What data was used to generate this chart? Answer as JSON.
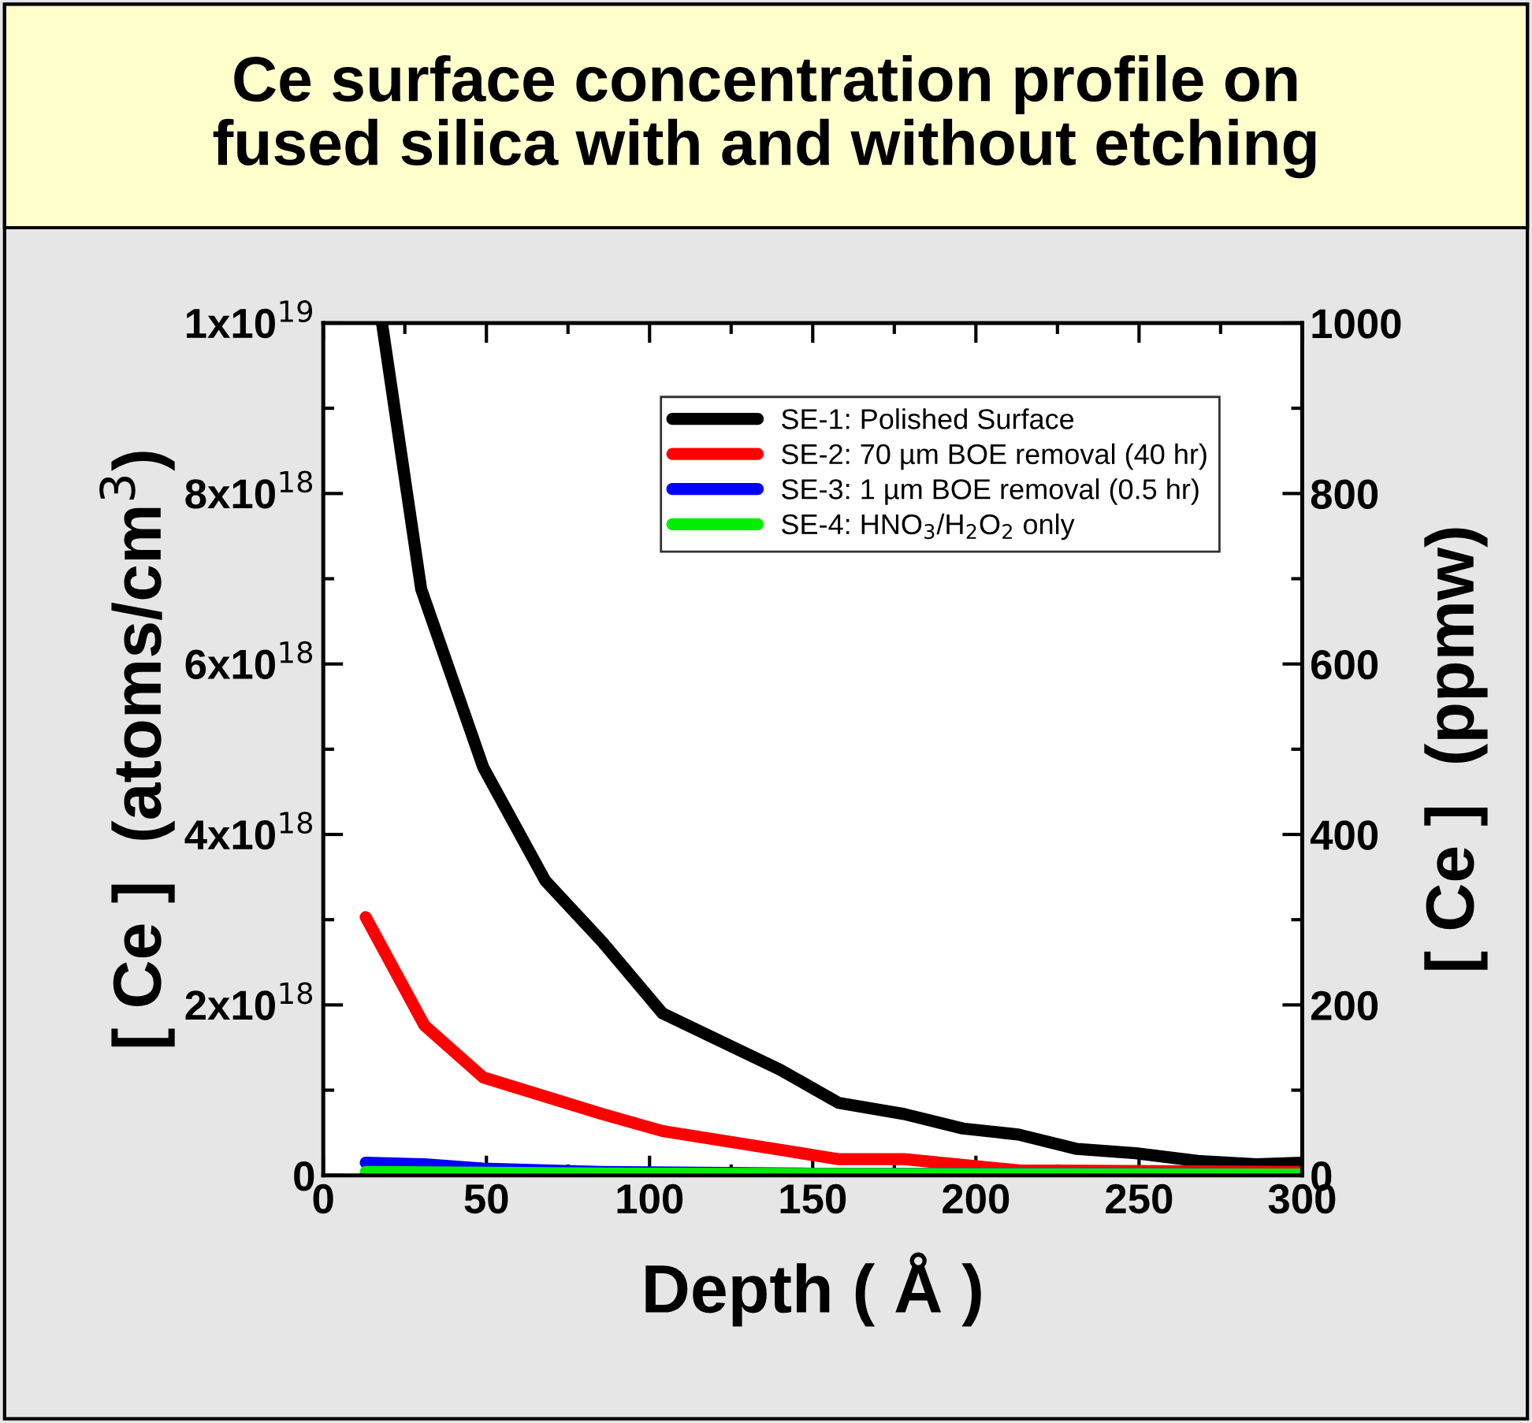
{
  "chart_data": {
    "type": "line",
    "title": "Ce surface concentration profile on\nfused silica with and without etching",
    "xlabel": "Depth ( Å )",
    "ylabel": "[ Ce ]  (atoms/cm$^{3}$)",
    "y2label": "[ Ce ]  (ppmw)",
    "xlim": [
      0,
      300
    ],
    "xticks": [
      0,
      50,
      100,
      150,
      200,
      250,
      300
    ],
    "ylim": [
      0,
      1e+19
    ],
    "yticks": [
      {
        "value": 0,
        "label": "0"
      },
      {
        "value": 2e+18,
        "label": "2x10$^{18}$"
      },
      {
        "value": 4e+18,
        "label": "4x10$^{18}$"
      },
      {
        "value": 6e+18,
        "label": "6x10$^{18}$"
      },
      {
        "value": 8e+18,
        "label": "8x10$^{18}$"
      },
      {
        "value": 1e+19,
        "label": "1x10$^{19}$"
      }
    ],
    "y2lim": [
      0,
      1000
    ],
    "y2ticks": [
      0,
      200,
      400,
      600,
      800,
      1000
    ],
    "legend": "top right",
    "line_style": "solid",
    "marker": "none",
    "grid": false,
    "series": [
      {
        "name": "SE-1: Polished Surface",
        "color": "#000000",
        "x": [
          18,
          30,
          49,
          68,
          85.5,
          104,
          140,
          158,
          178,
          196,
          213,
          231,
          249,
          268,
          286,
          300
        ],
        "values": [
          1e+19,
          6.88e+18,
          4.79e+18,
          3.46e+18,
          2.74e+18,
          1.9e+18,
          1.24e+18,
          8.5e+17,
          7.2e+17,
          5.5e+17,
          4.8e+17,
          3.1e+17,
          2.6e+17,
          1.7e+17,
          1.3e+17,
          1.5e+17
        ]
      },
      {
        "name": "SE-2: 70 µm BOE removal (40 hr)",
        "color": "#ff0000",
        "x": [
          13,
          31,
          49,
          85.5,
          104,
          140,
          158,
          178,
          213,
          300
        ],
        "values": [
          3.03e+18,
          1.76e+18,
          1.15e+18,
          7.2e+17,
          5.2e+17,
          3e+17,
          1.9e+17,
          1.9e+17,
          6e+16,
          4e+16
        ]
      },
      {
        "name": "SE-3: 1 µm BOE removal (0.5 hr)",
        "color": "#0000ff",
        "x": [
          13,
          31,
          49,
          85,
          150,
          300
        ],
        "values": [
          1.5e+17,
          1.3e+17,
          8e+16,
          4e+16,
          2e+16,
          1e+16
        ]
      },
      {
        "name": "SE-4: HNO$_{3}$/H$_{2}$O$_{2}$ only",
        "color": "#00ee00",
        "x": [
          13,
          50,
          100,
          300
        ],
        "values": [
          4e+16,
          3e+16,
          2e+16,
          1e+16
        ]
      }
    ]
  }
}
